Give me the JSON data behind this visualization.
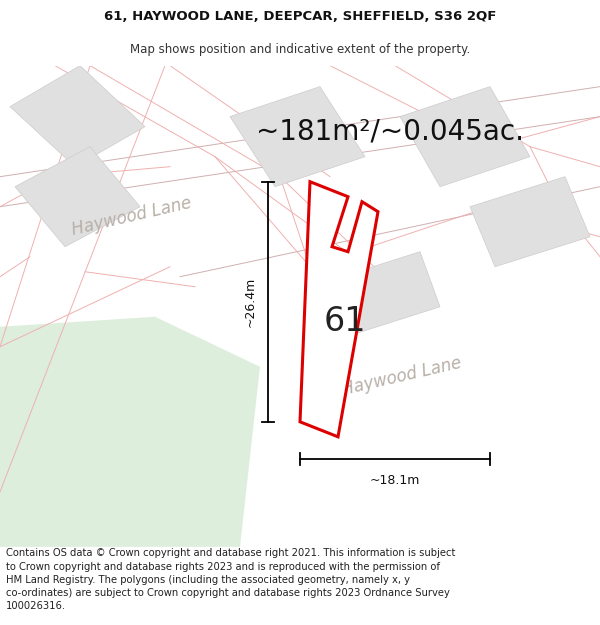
{
  "title_line1": "61, HAYWOOD LANE, DEEPCAR, SHEFFIELD, S36 2QF",
  "title_line2": "Map shows position and indicative extent of the property.",
  "area_text": "~181m²/~0.045ac.",
  "label_number": "61",
  "dim_vertical": "~26.4m",
  "dim_horizontal": "~18.1m",
  "road_label1": "Haywood Lane",
  "road_label2": "Haywood Lane",
  "footer_text": "Contains OS data © Crown copyright and database right 2021. This information is subject to Crown copyright and database rights 2023 and is reproduced with the permission of HM Land Registry. The polygons (including the associated geometry, namely x, y co-ordinates) are subject to Crown copyright and database rights 2023 Ordnance Survey 100026316.",
  "map_bg": "#ffffff",
  "green_area_color": "#ddeedd",
  "property_outline_color": "#dd0000",
  "property_fill_color": "#ffffff",
  "neighbor_fill_color": "#e0e0e0",
  "neighbor_outline_color": "#e8a0a0",
  "plot_outline_color": "#f0b0b0",
  "title_fontsize": 9.5,
  "subtitle_fontsize": 8.5,
  "area_fontsize": 20,
  "label_fontsize": 24,
  "dim_fontsize": 9,
  "road_fontsize": 12,
  "footer_fontsize": 7.2
}
